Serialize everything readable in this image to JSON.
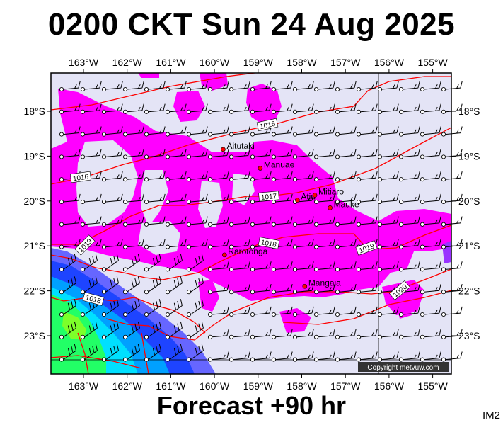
{
  "title": "0200 CKT Sun 24 Aug 2025",
  "forecast_label": "Forecast +90 hr",
  "product_code": "IM2",
  "copyright": "Copyright metvuw.com",
  "map": {
    "lon_labels": [
      "163°W",
      "162°W",
      "161°W",
      "160°W",
      "159°W",
      "158°W",
      "157°W",
      "156°W",
      "155°W"
    ],
    "lat_labels": [
      "18°S",
      "19°S",
      "20°S",
      "21°S",
      "22°S",
      "23°S"
    ],
    "places": [
      {
        "name": "Aitutaki",
        "lon": -159.8,
        "lat": -18.85
      },
      {
        "name": "Manuae",
        "lon": -158.95,
        "lat": -19.27
      },
      {
        "name": "Atiu",
        "lon": -158.1,
        "lat": -19.98
      },
      {
        "name": "Mitiaro",
        "lon": -157.7,
        "lat": -19.87
      },
      {
        "name": "Mauke",
        "lon": -157.35,
        "lat": -20.15
      },
      {
        "name": "Rarotonga",
        "lon": -159.77,
        "lat": -21.2
      },
      {
        "name": "Mangaia",
        "lon": -157.93,
        "lat": -21.9
      }
    ],
    "isobars": [
      "1016",
      "1016",
      "1017",
      "1018",
      "1019",
      "1019",
      "1020",
      "1018"
    ],
    "colors": {
      "background": "#e4e4f6",
      "precip_light": "#ff00ff",
      "precip_mod": "#9933ff",
      "precip_heavy_blue": "#1e44ff",
      "precip_heavy_cyan": "#00e0ff",
      "precip_heavy_green": "#22ff66",
      "isobar": "#ff0000",
      "town": "#ff0000"
    }
  }
}
